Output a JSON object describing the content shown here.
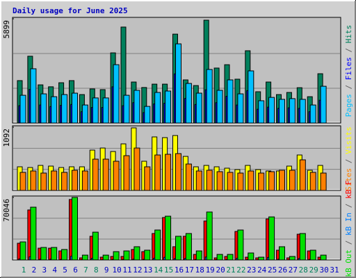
{
  "chart_data": [
    {
      "type": "bar",
      "title": "Daily usage for June 2025",
      "ylim": [
        0,
        5899
      ],
      "yticks": [
        5899
      ],
      "grid": true,
      "legend_separator": " / ",
      "series": [
        {
          "name": "Hits",
          "color": "#00805c",
          "values": [
            2400,
            3780,
            2160,
            2050,
            2280,
            2400,
            1610,
            1930,
            1890,
            3970,
            5430,
            2320,
            2010,
            2200,
            2200,
            5030,
            2440,
            2120,
            5820,
            3110,
            3300,
            2480,
            4090,
            1770,
            2320,
            1610,
            1730,
            2000,
            1490,
            2790,
            0
          ]
        },
        {
          "name": "Files",
          "color": "#0000ff",
          "values": [
            980,
            1900,
            1020,
            930,
            1000,
            1050,
            640,
            880,
            880,
            2050,
            980,
            1150,
            590,
            1080,
            1120,
            2780,
            1390,
            1050,
            1880,
            1150,
            1510,
            1020,
            1830,
            780,
            900,
            830,
            860,
            830,
            640,
            1290,
            0
          ]
        },
        {
          "name": "Pages",
          "color": "#00c0ff",
          "values": [
            1570,
            3070,
            1650,
            1490,
            1610,
            1690,
            1020,
            1420,
            1420,
            3300,
            1570,
            1850,
            940,
            1730,
            1810,
            4480,
            2240,
            1690,
            3030,
            1850,
            2440,
            1650,
            2950,
            1260,
            1450,
            1340,
            1380,
            1340,
            1020,
            2080,
            0
          ]
        }
      ]
    },
    {
      "type": "bar",
      "ylim": [
        0,
        1092
      ],
      "yticks": [
        1092
      ],
      "grid": true,
      "legend_separator": " / ",
      "series": [
        {
          "name": "Visits",
          "color": "#ffff00",
          "values": [
            408,
            396,
            432,
            420,
            396,
            408,
            408,
            696,
            732,
            672,
            804,
            1080,
            504,
            924,
            912,
            948,
            588,
            408,
            432,
            408,
            384,
            360,
            432,
            360,
            336,
            336,
            420,
            612,
            348,
            432,
            0
          ]
        },
        {
          "name": "Sites",
          "color": "#ff8000",
          "values": [
            312,
            336,
            300,
            336,
            312,
            348,
            336,
            540,
            540,
            504,
            600,
            732,
            408,
            612,
            624,
            636,
            456,
            336,
            348,
            324,
            312,
            300,
            336,
            300,
            324,
            348,
            348,
            528,
            312,
            300,
            0
          ]
        }
      ]
    },
    {
      "type": "bar",
      "ylim": [
        0,
        70046
      ],
      "yticks": [
        70046
      ],
      "grid": true,
      "legend_separator": " / ",
      "categories": [
        "1",
        "2",
        "3",
        "4",
        "5",
        "6",
        "7",
        "8",
        "9",
        "10",
        "11",
        "12",
        "13",
        "14",
        "15",
        "16",
        "17",
        "18",
        "19",
        "20",
        "21",
        "22",
        "23",
        "24",
        "25",
        "26",
        "27",
        "28",
        "29",
        "30",
        "31"
      ],
      "category_colors": [
        "#00805c",
        "#0000c0",
        "#0000c0",
        "#0000c0",
        "#0000c0",
        "#0000c0",
        "#00805c",
        "#00805c",
        "#0000c0",
        "#0000c0",
        "#0000c0",
        "#0000c0",
        "#0000c0",
        "#00805c",
        "#00805c",
        "#0000c0",
        "#0000c0",
        "#0000c0",
        "#0000c0",
        "#0000c0",
        "#00805c",
        "#00805c",
        "#0000c0",
        "#0000c0",
        "#0000c0",
        "#0000c0",
        "#0000c0",
        "#00805c",
        "#00805c",
        "#0000c0",
        "#0000c0"
      ],
      "series": [
        {
          "name": "kB F",
          "color": "#ff0000",
          "values": [
            18700,
            56000,
            13200,
            13200,
            10100,
            67700,
            2300,
            26500,
            3100,
            3900,
            3900,
            11700,
            9300,
            29600,
            47500,
            14800,
            26500,
            6200,
            43600,
            2300,
            3900,
            31900,
            3100,
            2300,
            45900,
            10900,
            2300,
            28800,
            10100,
            3100,
            0
          ]
        },
        {
          "name": "kB In",
          "color": "#0080ff",
          "values": [
            1200,
            3500,
            900,
            900,
            700,
            4300,
            300,
            1900,
            300,
            600,
            600,
            900,
            700,
            2000,
            3000,
            1600,
            1800,
            600,
            3300,
            400,
            400,
            2000,
            500,
            200,
            2900,
            900,
            200,
            1800,
            700,
            300,
            0
          ]
        },
        {
          "name": "kB Out",
          "color": "#00e000",
          "values": [
            20200,
            59100,
            14000,
            14000,
            11700,
            70046,
            5400,
            31100,
            5400,
            9300,
            10100,
            14800,
            10900,
            33500,
            49000,
            26500,
            29600,
            10100,
            53700,
            6200,
            6200,
            33500,
            7800,
            3100,
            48200,
            14800,
            3900,
            29600,
            10900,
            5400,
            0
          ]
        }
      ]
    }
  ]
}
